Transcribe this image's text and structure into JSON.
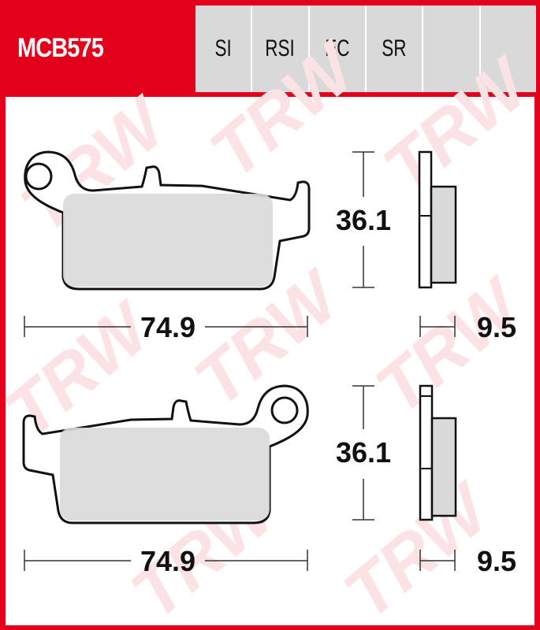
{
  "header": {
    "part_number": "MCB575",
    "compounds": [
      "SI",
      "RSI",
      "EC",
      "SR",
      "",
      ""
    ]
  },
  "watermark": "TRW",
  "pads": [
    {
      "height": "36.1",
      "width": "74.9",
      "thickness": "9.5"
    },
    {
      "height": "36.1",
      "width": "74.9",
      "thickness": "9.5"
    }
  ],
  "colors": {
    "brand_red": "#e2001a",
    "cell_grey": "#d9d9d9",
    "friction_grey": "#d9d9d9"
  }
}
